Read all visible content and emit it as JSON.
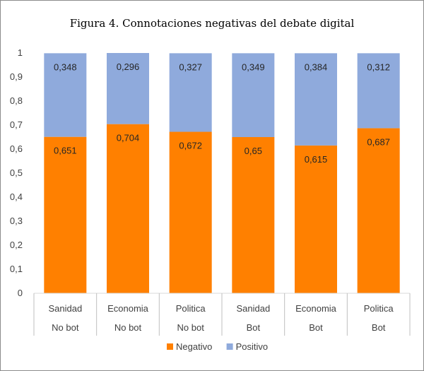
{
  "chart_data": {
    "type": "bar",
    "stacked": true,
    "title": "Figura 4. Connotaciones negativas del debate digital",
    "categories": [
      {
        "topic": "Sanidad",
        "group": "No bot"
      },
      {
        "topic": "Economia",
        "group": "No bot"
      },
      {
        "topic": "Politica",
        "group": "No bot"
      },
      {
        "topic": "Sanidad",
        "group": "Bot"
      },
      {
        "topic": "Economia",
        "group": "Bot"
      },
      {
        "topic": "Politica",
        "group": "Bot"
      }
    ],
    "series": [
      {
        "name": "Negativo",
        "color": "#FF8000",
        "values": [
          0.651,
          0.704,
          0.672,
          0.65,
          0.615,
          0.687
        ],
        "labels": [
          "0,651",
          "0,704",
          "0,672",
          "0,65",
          "0,615",
          "0,687"
        ]
      },
      {
        "name": "Positivo",
        "color": "#8FAADC",
        "values": [
          0.348,
          0.296,
          0.327,
          0.349,
          0.384,
          0.312
        ],
        "labels": [
          "0,348",
          "0,296",
          "0,327",
          "0,349",
          "0,384",
          "0,312"
        ]
      }
    ],
    "yticks": [
      "0",
      "0,1",
      "0,2",
      "0,3",
      "0,4",
      "0,5",
      "0,6",
      "0,7",
      "0,8",
      "0,9",
      "1"
    ],
    "ylim": [
      0,
      1
    ],
    "legend": "bottom"
  }
}
